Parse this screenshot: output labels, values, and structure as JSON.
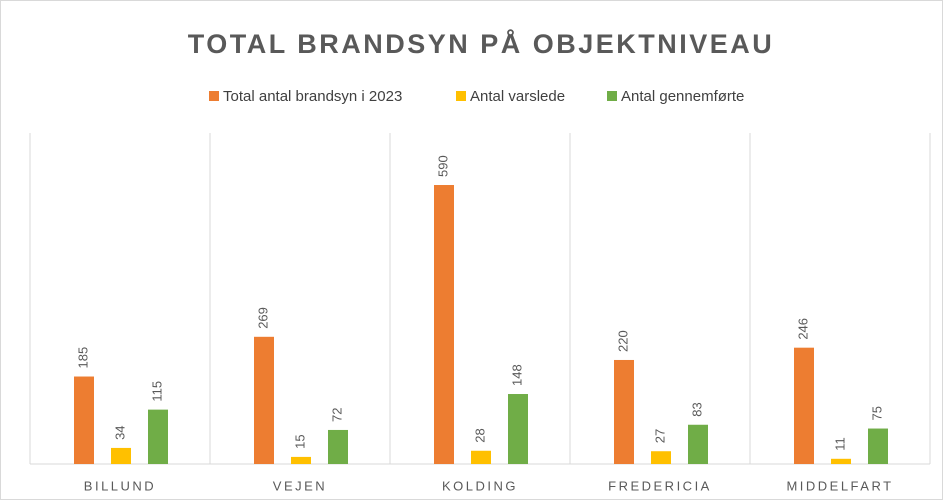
{
  "chart_data": {
    "type": "bar",
    "title": "TOTAL BRANDSYN PÅ OBJEKTNIVEAU",
    "categories": [
      "BILLUND",
      "VEJEN",
      "KOLDING",
      "FREDERICIA",
      "MIDDELFART"
    ],
    "series": [
      {
        "name": "Total antal brandsyn i 2023",
        "color": "#ed7d31",
        "values": [
          185,
          269,
          590,
          220,
          246
        ]
      },
      {
        "name": "Antal varslede",
        "color": "#ffc000",
        "values": [
          34,
          15,
          28,
          27,
          11
        ]
      },
      {
        "name": "Antal gennemførte",
        "color": "#70ad47",
        "values": [
          115,
          72,
          148,
          83,
          75
        ]
      }
    ],
    "ylim": [
      0,
      700
    ],
    "legend": "top",
    "grid": "vertical"
  }
}
